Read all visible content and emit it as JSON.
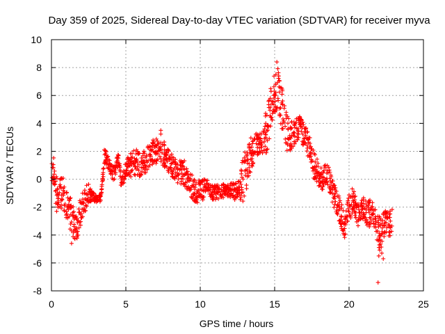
{
  "chart_data": {
    "type": "scatter",
    "title": "Day 359 of 2025, Sidereal Day-to-day VTEC variation (SDTVAR) for receiver myva",
    "xlabel": "GPS time / hours",
    "ylabel": "SDTVAR / TECUs",
    "xlim": [
      0,
      25
    ],
    "ylim": [
      -8,
      10
    ],
    "xticks": [
      0,
      5,
      10,
      15,
      20,
      25
    ],
    "yticks": [
      -8,
      -6,
      -4,
      -2,
      0,
      2,
      4,
      6,
      8,
      10
    ],
    "grid": true,
    "marker": "+",
    "color": "#ff0000",
    "trace_description": "dense cloud of plus markers approximated by trace segments [x, y_center, y_spread]",
    "series": [
      {
        "name": "SDTVAR",
        "trace": [
          [
            0.0,
            0.0,
            1.6
          ],
          [
            0.15,
            0.8,
            1.2
          ],
          [
            0.3,
            -0.5,
            1.5
          ],
          [
            0.45,
            -1.5,
            1.2
          ],
          [
            0.6,
            -1.2,
            1.4
          ],
          [
            0.75,
            -0.8,
            1.2
          ],
          [
            0.9,
            -1.5,
            1.2
          ],
          [
            1.3,
            -2.5,
            1.4
          ],
          [
            1.5,
            -3.2,
            1.2
          ],
          [
            1.7,
            -3.5,
            1.0
          ],
          [
            1.9,
            -2.5,
            1.2
          ],
          [
            2.1,
            -2.0,
            1.2
          ],
          [
            2.3,
            -1.3,
            1.0
          ],
          [
            2.5,
            -1.0,
            0.8
          ],
          [
            2.7,
            -1.3,
            0.5
          ],
          [
            3.0,
            -1.4,
            0.3
          ],
          [
            3.3,
            -1.4,
            0.3
          ],
          [
            3.6,
            1.7,
            0.5
          ],
          [
            3.9,
            1.0,
            0.5
          ],
          [
            4.2,
            0.3,
            0.6
          ],
          [
            4.5,
            1.5,
            0.5
          ],
          [
            4.7,
            -0.3,
            0.5
          ],
          [
            5.0,
            0.8,
            0.6
          ],
          [
            5.3,
            1.0,
            1.0
          ],
          [
            5.7,
            1.3,
            1.1
          ],
          [
            6.1,
            1.0,
            1.0
          ],
          [
            6.5,
            1.5,
            1.0
          ],
          [
            6.9,
            2.0,
            1.0
          ],
          [
            7.3,
            2.3,
            1.2
          ],
          [
            7.7,
            1.6,
            1.0
          ],
          [
            8.1,
            1.0,
            0.9
          ],
          [
            8.5,
            0.5,
            0.9
          ],
          [
            8.9,
            0.5,
            1.0
          ],
          [
            9.3,
            -0.3,
            1.0
          ],
          [
            9.7,
            -1.0,
            0.9
          ],
          [
            10.1,
            -0.8,
            0.9
          ],
          [
            10.5,
            -0.6,
            0.6
          ],
          [
            10.9,
            -1.0,
            0.6
          ],
          [
            11.3,
            -0.9,
            0.6
          ],
          [
            11.7,
            -0.8,
            0.5
          ],
          [
            12.1,
            -0.8,
            0.6
          ],
          [
            12.5,
            -1.0,
            0.8
          ],
          [
            12.9,
            0.0,
            1.8
          ],
          [
            13.3,
            1.5,
            1.5
          ],
          [
            13.7,
            2.5,
            1.0
          ],
          [
            14.1,
            2.5,
            0.9
          ],
          [
            14.5,
            3.5,
            2.0
          ],
          [
            14.9,
            6.0,
            1.6
          ],
          [
            15.2,
            6.5,
            1.7
          ],
          [
            15.5,
            5.0,
            1.8
          ],
          [
            15.8,
            3.3,
            1.5
          ],
          [
            16.1,
            3.0,
            1.2
          ],
          [
            16.4,
            3.5,
            1.0
          ],
          [
            16.7,
            3.8,
            0.8
          ],
          [
            17.0,
            3.0,
            1.0
          ],
          [
            17.3,
            2.5,
            1.2
          ],
          [
            17.6,
            1.0,
            1.2
          ],
          [
            17.9,
            0.5,
            1.0
          ],
          [
            18.2,
            0.0,
            0.9
          ],
          [
            18.5,
            0.5,
            0.8
          ],
          [
            18.8,
            -0.5,
            1.0
          ],
          [
            19.1,
            -1.5,
            1.0
          ],
          [
            19.4,
            -2.3,
            1.0
          ],
          [
            19.7,
            -3.5,
            1.0
          ],
          [
            20.0,
            -2.0,
            1.2
          ],
          [
            20.3,
            -1.5,
            1.0
          ],
          [
            20.6,
            -2.5,
            1.0
          ],
          [
            20.9,
            -2.0,
            1.0
          ],
          [
            21.2,
            -2.5,
            1.0
          ],
          [
            21.5,
            -2.5,
            1.2
          ],
          [
            21.8,
            -3.0,
            1.2
          ],
          [
            22.1,
            -4.0,
            1.5
          ],
          [
            22.4,
            -3.0,
            1.0
          ],
          [
            22.7,
            -3.3,
            1.0
          ],
          [
            22.9,
            -2.8,
            1.0
          ]
        ],
        "outliers": [
          [
            21.95,
            -7.4
          ],
          [
            22.3,
            -5.7
          ],
          [
            22.2,
            -5.3
          ],
          [
            22.0,
            -5.5
          ],
          [
            1.35,
            -4.6
          ],
          [
            0.35,
            -2.3
          ],
          [
            15.15,
            8.4
          ],
          [
            7.35,
            3.5
          ],
          [
            3.55,
            2.1
          ]
        ]
      }
    ]
  }
}
